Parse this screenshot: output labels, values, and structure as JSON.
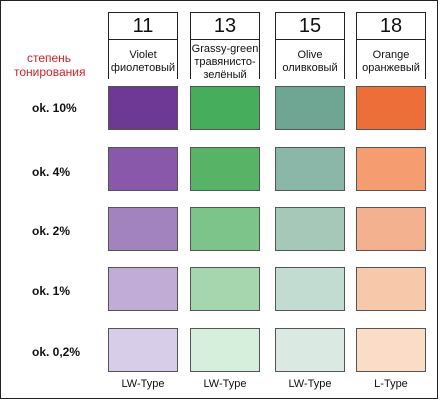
{
  "title": "степень тонирования",
  "columns": [
    {
      "number": "11",
      "name_en": "Violet",
      "name_ru": "фиолетовый",
      "type": "LW-Type",
      "shades": [
        "#6e3895",
        "#8a58aa",
        "#a383bd",
        "#c1acd6",
        "#d8cde8"
      ]
    },
    {
      "number": "13",
      "name_en": "Grassy-green",
      "name_ru": "травянисто-зелёный",
      "type": "LW-Type",
      "shades": [
        "#45ad5c",
        "#57b467",
        "#7dc48a",
        "#a5d6ae",
        "#d6eedc"
      ]
    },
    {
      "number": "15",
      "name_en": "Olive",
      "name_ru": "оливковый",
      "type": "LW-Type",
      "shades": [
        "#6ea693",
        "#8ab7a7",
        "#a6c8b9",
        "#c2dcd1",
        "#dbe9e3"
      ]
    },
    {
      "number": "18",
      "name_en": "Orange",
      "name_ru": "оранжевый",
      "type": "L-Type",
      "shades": [
        "#ee6e39",
        "#f59c70",
        "#f4b18f",
        "#f7c8aa",
        "#fbdcc7"
      ]
    }
  ],
  "rows": [
    {
      "label": "ok. 10%"
    },
    {
      "label": "ok. 4%"
    },
    {
      "label": "ok. 2%"
    },
    {
      "label": "ok. 1%"
    },
    {
      "label": "ok. 0,2%"
    }
  ]
}
